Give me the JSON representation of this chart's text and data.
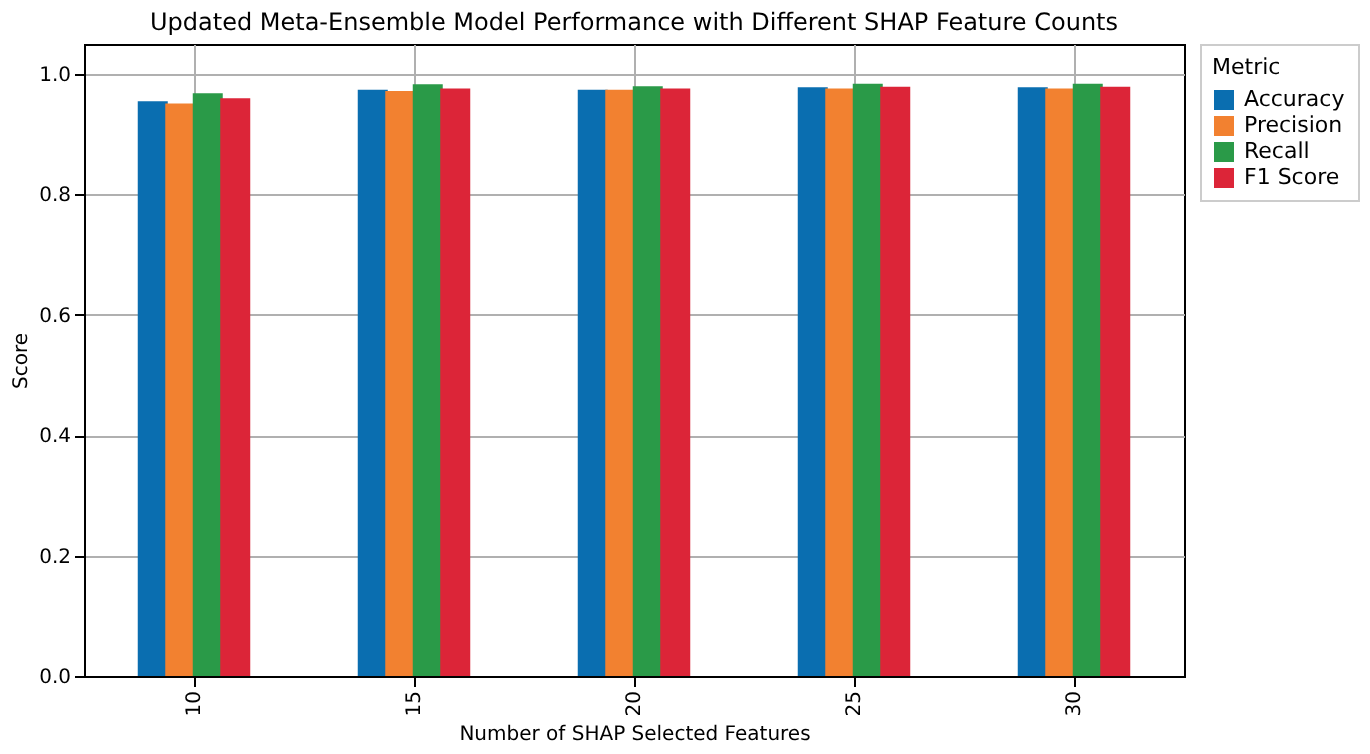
{
  "chart_data": {
    "type": "bar",
    "title": "Updated Meta-Ensemble Model Performance with Different SHAP Feature Counts",
    "xlabel": "Number of SHAP Selected Features",
    "ylabel": "Score",
    "legend_title": "Metric",
    "categories": [
      "10",
      "15",
      "20",
      "25",
      "30"
    ],
    "series": [
      {
        "name": "Accuracy",
        "color": "#0a6eb0",
        "values": [
          0.955,
          0.974,
          0.974,
          0.978,
          0.978
        ]
      },
      {
        "name": "Precision",
        "color": "#f28130",
        "values": [
          0.951,
          0.972,
          0.974,
          0.976,
          0.976
        ]
      },
      {
        "name": "Recall",
        "color": "#2a9a48",
        "values": [
          0.968,
          0.983,
          0.98,
          0.984,
          0.984
        ]
      },
      {
        "name": "F1 Score",
        "color": "#dc2538",
        "values": [
          0.96,
          0.976,
          0.976,
          0.979,
          0.979
        ]
      }
    ],
    "ylim": [
      0,
      1.05
    ],
    "yticks": [
      {
        "value": 0,
        "label": "0.0"
      },
      {
        "value": 0.2,
        "label": "0.2"
      },
      {
        "value": 0.4,
        "label": "0.4"
      },
      {
        "value": 0.6,
        "label": "0.6"
      },
      {
        "value": 0.8,
        "label": "0.8"
      },
      {
        "value": 1,
        "label": "1.0"
      }
    ],
    "grid": true,
    "legend": "right"
  }
}
